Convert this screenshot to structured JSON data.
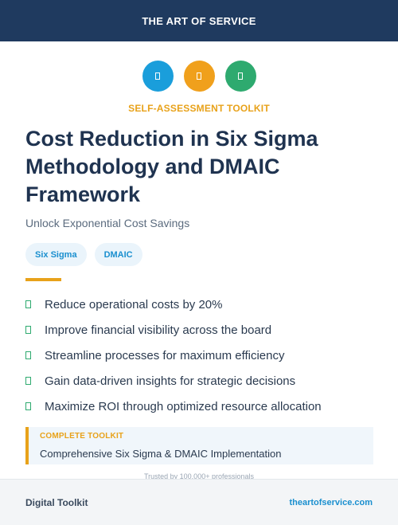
{
  "header": {
    "title": "THE ART OF SERVICE"
  },
  "icons": [
    {
      "name": "blue-icon",
      "color": "#1a9edb"
    },
    {
      "name": "orange-icon",
      "color": "#f0a01c"
    },
    {
      "name": "green-icon",
      "color": "#2eaa6f"
    }
  ],
  "eyebrow": "SELF-ASSESSMENT TOOLKIT",
  "title": "Cost Reduction in Six Sigma Methodology and DMAIC Framework",
  "subtitle": "Unlock Exponential Cost Savings",
  "tags": [
    "Six Sigma",
    "DMAIC"
  ],
  "benefits": [
    "Reduce operational costs by 20%",
    "Improve financial visibility across the board",
    "Streamline processes for maximum efficiency",
    "Gain data-driven insights for strategic decisions",
    "Maximize ROI through optimized resource allocation"
  ],
  "callout": {
    "label": "COMPLETE TOOLKIT",
    "text": "Comprehensive Six Sigma & DMAIC Implementation"
  },
  "trusted": "Trusted by 100,000+ professionals",
  "footer": {
    "left": "Digital Toolkit",
    "right": "theartofservice.com"
  },
  "colors": {
    "navy": "#1f3a5f",
    "accent": "#e8a21a",
    "link": "#1a8fcf",
    "check": "#2eaa6f"
  }
}
